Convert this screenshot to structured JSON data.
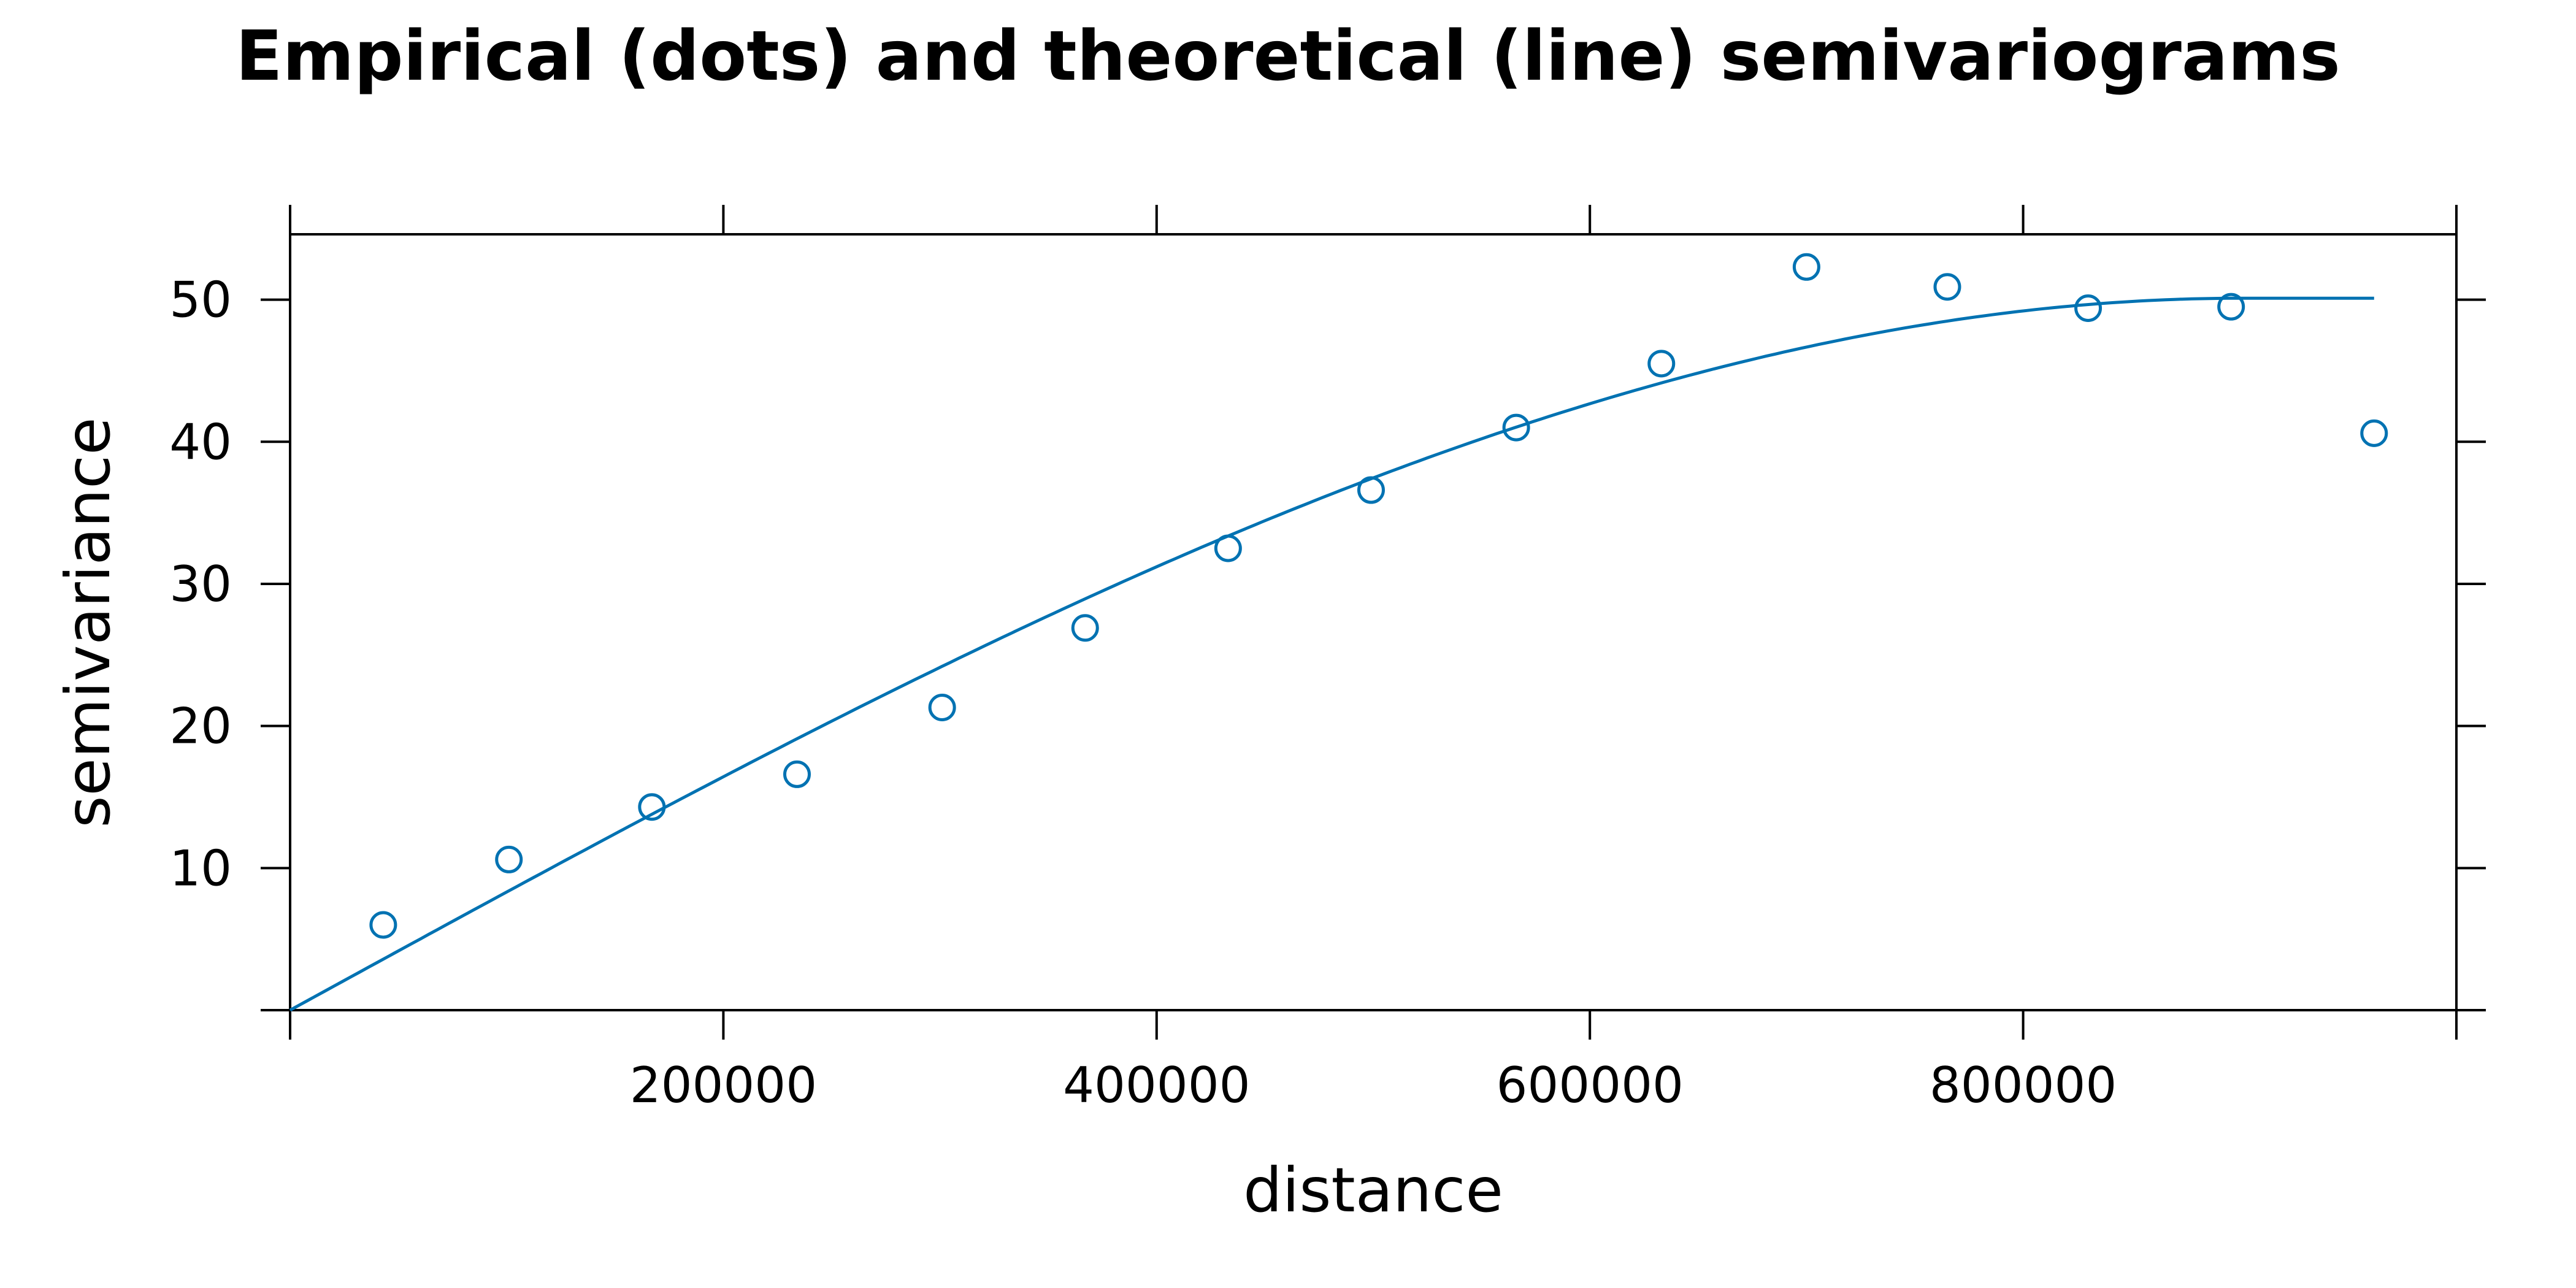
{
  "chart_data": {
    "type": "scatter",
    "title": "Empirical (dots) and theoretical (line) semivariograms",
    "xlabel": "distance",
    "ylabel": "semivariance",
    "xlim": [
      0,
      1000000
    ],
    "ylim": [
      0,
      54.6
    ],
    "x_ticks": [
      200000,
      400000,
      600000,
      800000
    ],
    "y_ticks": [
      10,
      20,
      30,
      40,
      50
    ],
    "grid": false,
    "series_color": "#0072B2",
    "empirical": {
      "x": [
        43000,
        101000,
        167000,
        234000,
        301000,
        367000,
        433000,
        499000,
        566000,
        633000,
        700000,
        765000,
        830000,
        896000,
        962000
      ],
      "y": [
        6.0,
        10.6,
        14.3,
        16.6,
        21.3,
        26.9,
        32.5,
        36.6,
        41.0,
        45.5,
        52.3,
        50.9,
        49.4,
        49.5,
        40.6
      ]
    },
    "theoretical": {
      "model": "spherical",
      "nugget": 0,
      "sill": 50.1,
      "range": 900000,
      "x_max": 962000
    }
  }
}
